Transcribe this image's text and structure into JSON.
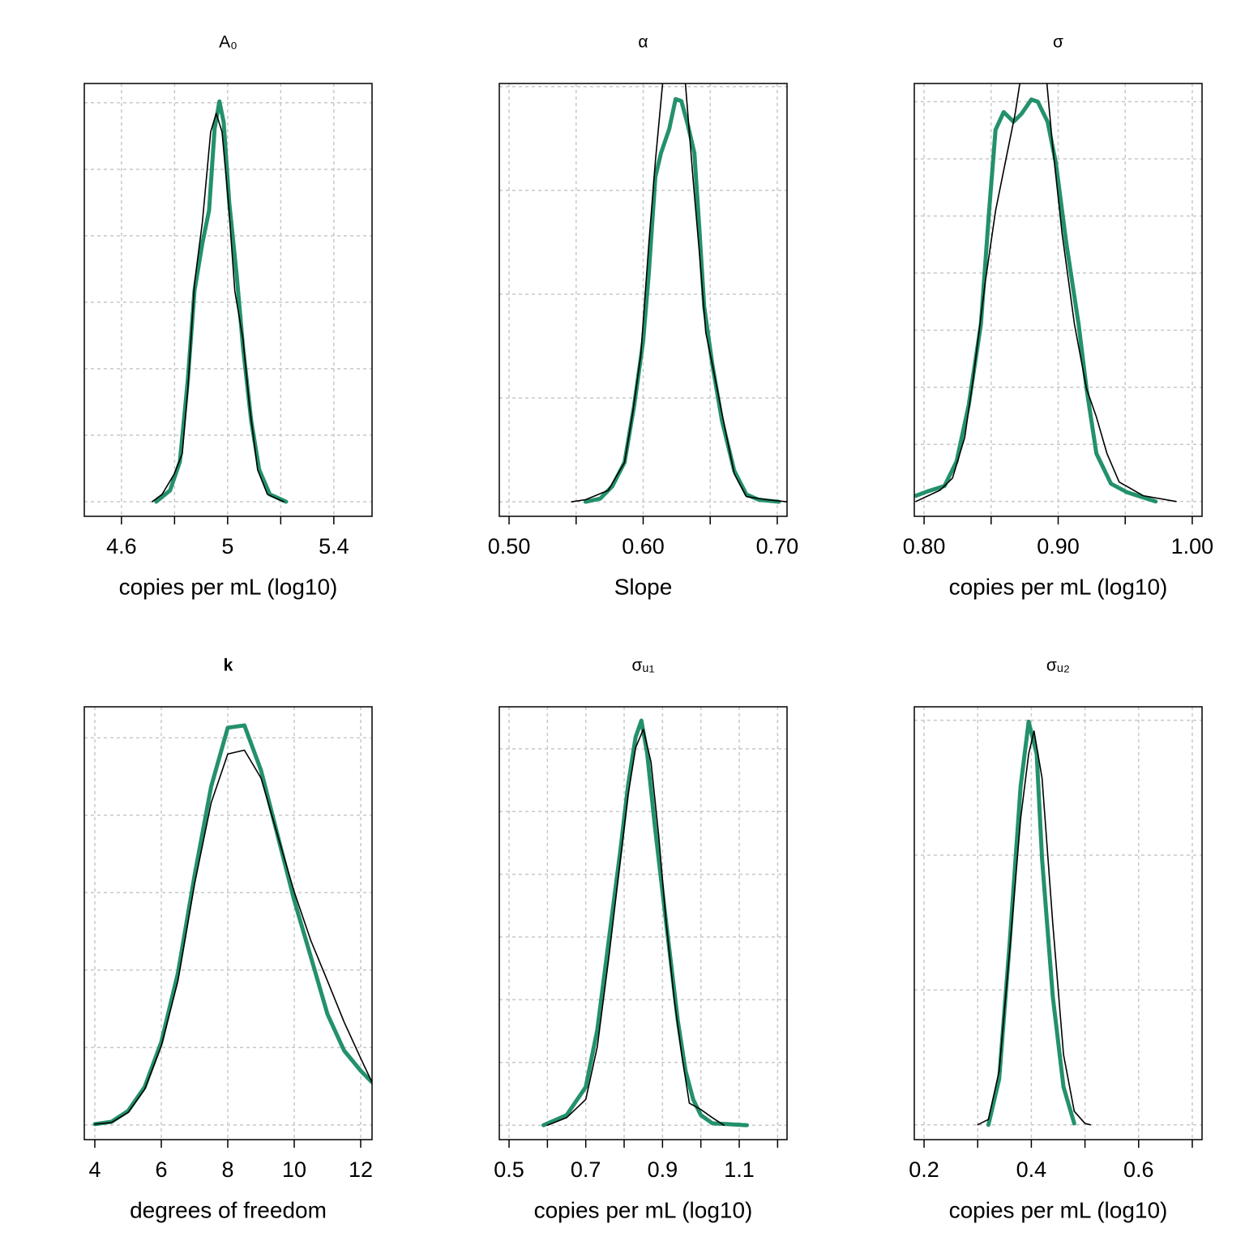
{
  "chart_data": [
    {
      "type": "density",
      "title": "A₀",
      "xlabel": "copies per mL (log10)",
      "xlim": [
        4.46,
        5.544
      ],
      "xticks": [
        4.6,
        5.0,
        5.4
      ],
      "xminorticks": [
        4.8,
        5.2
      ],
      "ylim": [
        -0.22,
        6.29
      ],
      "ygrid": [
        0,
        1,
        2,
        3,
        4,
        5,
        6
      ],
      "grid": true,
      "series": [
        {
          "color": "#23916b",
          "width": 5,
          "x": [
            4.731,
            4.783,
            4.82,
            4.85,
            4.875,
            4.905,
            4.93,
            4.951,
            4.969,
            4.985,
            5.006,
            5.034,
            5.058,
            5.089,
            5.119,
            5.159,
            5.22
          ],
          "values": [
            0,
            0.17,
            0.6,
            1.83,
            3.17,
            3.89,
            4.38,
            5.61,
            6.02,
            5.71,
            4.5,
            3.41,
            2.32,
            1.21,
            0.48,
            0.11,
            0
          ]
        },
        {
          "color": "#000000",
          "width": 1.6,
          "x": [
            4.716,
            4.753,
            4.798,
            4.829,
            4.85,
            4.875,
            4.905,
            4.936,
            4.957,
            4.979,
            5.003,
            5.027,
            5.058,
            5.082,
            5.113,
            5.15,
            5.211
          ],
          "values": [
            0,
            0.11,
            0.41,
            0.72,
            1.68,
            3.28,
            4.21,
            5.56,
            5.84,
            5.56,
            4.5,
            3.17,
            2.44,
            1.45,
            0.48,
            0.11,
            0
          ]
        }
      ]
    },
    {
      "type": "density",
      "title": "α",
      "xlabel": "Slope",
      "xlim": [
        0.4927,
        0.7073
      ],
      "xticks": [
        0.5,
        0.6,
        0.7
      ],
      "xticklabels": [
        "0.50",
        "0.60",
        "0.70"
      ],
      "xminorticks": [
        0.55,
        0.65
      ],
      "ylim": [
        -0.14,
        4.03
      ],
      "ygrid": [
        0,
        1,
        2,
        3,
        4
      ],
      "grid": true,
      "series": [
        {
          "color": "#23916b",
          "width": 5,
          "x": [
            0.557,
            0.5679,
            0.577,
            0.5861,
            0.5933,
            0.6,
            0.6042,
            0.6091,
            0.6133,
            0.6194,
            0.6242,
            0.6285,
            0.6333,
            0.6382,
            0.6418,
            0.6455,
            0.6515,
            0.6588,
            0.6679,
            0.677,
            0.6861,
            0.7012
          ],
          "values": [
            0,
            0.03,
            0.15,
            0.38,
            0.93,
            1.55,
            2.2,
            3.13,
            3.36,
            3.59,
            3.88,
            3.86,
            3.63,
            3.36,
            2.65,
            1.88,
            1.33,
            0.78,
            0.3,
            0.07,
            0.02,
            0
          ]
        },
        {
          "color": "#000000",
          "width": 1.6,
          "x": [
            0.5467,
            0.557,
            0.5739,
            0.5861,
            0.5921,
            0.5982,
            0.6042,
            0.6091,
            0.6145,
            0.623,
            0.6315,
            0.6376,
            0.6418,
            0.6467,
            0.6515,
            0.6588,
            0.6679,
            0.677,
            0.6921,
            0.7073
          ],
          "values": [
            0,
            0.02,
            0.11,
            0.38,
            0.85,
            1.41,
            2.48,
            3.28,
            4.03,
            4.6,
            4.03,
            3.05,
            2.42,
            1.63,
            1.33,
            0.85,
            0.27,
            0.05,
            0.02,
            0
          ]
        }
      ]
    },
    {
      "type": "density",
      "title": "σ",
      "xlabel": "copies per mL (log10)",
      "xlim": [
        0.7927,
        1.0073
      ],
      "xticks": [
        0.8,
        0.9,
        1.0
      ],
      "xticklabels": [
        "0.80",
        "0.90",
        "1.00"
      ],
      "xminorticks": [
        0.85,
        0.95
      ],
      "ylim": [
        -0.26,
        7.32
      ],
      "ygrid": [
        0,
        1,
        2,
        3,
        4,
        5,
        6,
        7
      ],
      "grid": true,
      "series": [
        {
          "color": "#23916b",
          "width": 5,
          "x": [
            0.7939,
            0.803,
            0.8152,
            0.8242,
            0.8333,
            0.8424,
            0.8485,
            0.8533,
            0.8594,
            0.8667,
            0.8727,
            0.88,
            0.8848,
            0.8921,
            0.8982,
            0.9061,
            0.9152,
            0.9212,
            0.9285,
            0.9394,
            0.9515,
            0.9727
          ],
          "values": [
            0.1,
            0.18,
            0.27,
            0.7,
            1.69,
            3.11,
            5.09,
            6.51,
            6.82,
            6.65,
            6.79,
            7.04,
            7.0,
            6.65,
            5.94,
            4.52,
            3.11,
            1.97,
            0.84,
            0.31,
            0.16,
            0
          ]
        },
        {
          "color": "#000000",
          "width": 1.6,
          "x": [
            0.7939,
            0.8121,
            0.8212,
            0.8303,
            0.8364,
            0.8455,
            0.8533,
            0.8606,
            0.8679,
            0.8739,
            0.8818,
            0.8909,
            0.8958,
            0.903,
            0.9121,
            0.9212,
            0.9285,
            0.9364,
            0.9455,
            0.9636,
            0.9879
          ],
          "values": [
            0,
            0.2,
            0.41,
            1.12,
            2.11,
            3.82,
            5.09,
            5.94,
            6.79,
            7.7,
            8.1,
            7.5,
            6.24,
            4.68,
            3.11,
            1.97,
            1.48,
            0.84,
            0.34,
            0.1,
            0
          ]
        }
      ]
    },
    {
      "type": "density",
      "title": "k",
      "title_bold": true,
      "xlabel": "degrees of freedom",
      "xlim": [
        3.683,
        12.341
      ],
      "xticks": [
        4,
        6,
        8,
        10,
        12
      ],
      "xminorticks": [],
      "ylim": [
        -0.19,
        5.4
      ],
      "ygrid": [
        0,
        1,
        2,
        3,
        4,
        5
      ],
      "grid": true,
      "series": [
        {
          "color": "#23916b",
          "width": 5,
          "x": [
            4,
            4.5,
            5,
            5.5,
            6,
            6.5,
            7,
            7.5,
            8,
            8.5,
            9,
            9.5,
            10,
            10.5,
            11,
            11.5,
            12,
            12.34
          ],
          "values": [
            0.01,
            0.04,
            0.18,
            0.49,
            1.07,
            1.96,
            3.22,
            4.37,
            5.13,
            5.16,
            4.58,
            3.74,
            2.9,
            2.17,
            1.43,
            0.96,
            0.7,
            0.55
          ]
        },
        {
          "color": "#000000",
          "width": 1.6,
          "x": [
            4,
            4.5,
            5,
            5.5,
            6,
            6.5,
            7,
            7.5,
            8,
            8.5,
            9,
            9.5,
            10,
            10.5,
            11,
            11.5,
            12,
            12.34
          ],
          "values": [
            0.01,
            0.03,
            0.16,
            0.46,
            1.02,
            1.86,
            3.11,
            4.16,
            4.79,
            4.84,
            4.48,
            3.74,
            3.01,
            2.38,
            1.86,
            1.33,
            0.86,
            0.55
          ]
        }
      ]
    },
    {
      "type": "density",
      "title": "σᵤ₁",
      "xlabel": "copies per mL (log10)",
      "xlim": [
        0.4746,
        1.2246
      ],
      "xticks": [
        0.5,
        0.7,
        0.9,
        1.1
      ],
      "xminorticks": [
        0.6,
        0.8,
        1.0,
        1.2
      ],
      "ylim": [
        -0.23,
        6.67
      ],
      "ygrid": [
        0,
        1,
        2,
        3,
        4,
        5,
        6
      ],
      "grid": true,
      "series": [
        {
          "color": "#23916b",
          "width": 5,
          "x": [
            0.59,
            0.65,
            0.7,
            0.73,
            0.76,
            0.79,
            0.81,
            0.83,
            0.845,
            0.86,
            0.88,
            0.9,
            0.92,
            0.94,
            0.96,
            0.98,
            1.0,
            1.03,
            1.12
          ],
          "values": [
            0,
            0.16,
            0.61,
            1.52,
            2.95,
            4.37,
            5.41,
            6.19,
            6.45,
            5.93,
            4.77,
            3.72,
            2.69,
            1.66,
            0.87,
            0.41,
            0.16,
            0.03,
            0
          ]
        },
        {
          "color": "#000000",
          "width": 1.6,
          "x": [
            0.6,
            0.65,
            0.7,
            0.73,
            0.76,
            0.79,
            0.81,
            0.83,
            0.85,
            0.87,
            0.89,
            0.91,
            0.93,
            0.95,
            0.97,
            1.0,
            1.03,
            1.06
          ],
          "values": [
            0,
            0.12,
            0.41,
            1.25,
            2.67,
            4.22,
            5.25,
            6.02,
            6.31,
            5.79,
            4.62,
            3.2,
            2.03,
            1.13,
            0.35,
            0.25,
            0.12,
            0
          ]
        }
      ]
    },
    {
      "type": "density",
      "title": "σᵤ₂",
      "xlabel": "copies per mL (log10)",
      "xlim": [
        0.1818,
        0.7182
      ],
      "xticks": [
        0.2,
        0.4,
        0.6
      ],
      "xminorticks": [
        0.3,
        0.5,
        0.7
      ],
      "ylim": [
        -0.11,
        3.1
      ],
      "ygrid": [
        0,
        1,
        2,
        3
      ],
      "grid": true,
      "series": [
        {
          "color": "#23916b",
          "width": 5,
          "x": [
            0.32,
            0.34,
            0.36,
            0.38,
            0.395,
            0.41,
            0.42,
            0.44,
            0.46,
            0.48
          ],
          "values": [
            0,
            0.34,
            1.37,
            2.51,
            2.99,
            2.75,
            1.97,
            0.95,
            0.28,
            0.01
          ]
        },
        {
          "color": "#000000",
          "width": 1.6,
          "x": [
            0.3,
            0.32,
            0.34,
            0.36,
            0.38,
            0.395,
            0.405,
            0.42,
            0.44,
            0.46,
            0.48,
            0.5,
            0.51
          ],
          "values": [
            0,
            0.04,
            0.4,
            1.31,
            2.27,
            2.75,
            2.92,
            2.57,
            1.49,
            0.52,
            0.1,
            0.01,
            0
          ]
        }
      ]
    }
  ]
}
